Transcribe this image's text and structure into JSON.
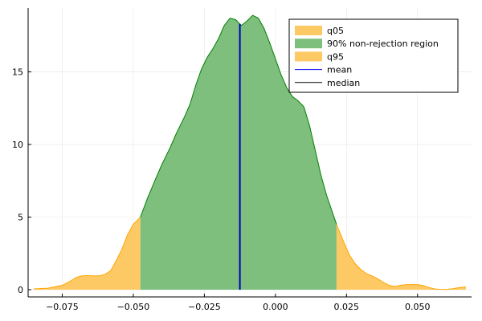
{
  "chart_data": {
    "type": "area",
    "title": "",
    "xlabel": "",
    "ylabel": "",
    "xlim": [
      -0.087,
      0.069
    ],
    "ylim": [
      -0.5,
      19.4
    ],
    "grid": true,
    "legend_position": "top-right",
    "x_ticks": [
      {
        "value": -0.075,
        "label": "−0.075"
      },
      {
        "value": -0.05,
        "label": "−0.050"
      },
      {
        "value": -0.025,
        "label": "−0.025"
      },
      {
        "value": 0.0,
        "label": "0.000"
      },
      {
        "value": 0.025,
        "label": "0.025"
      },
      {
        "value": 0.05,
        "label": "0.050"
      }
    ],
    "y_ticks": [
      {
        "value": 0,
        "label": "0"
      },
      {
        "value": 5,
        "label": "5"
      },
      {
        "value": 10,
        "label": "10"
      },
      {
        "value": 15,
        "label": "15"
      }
    ],
    "density": {
      "x": [
        -0.085,
        -0.08,
        -0.075,
        -0.072,
        -0.07,
        -0.068,
        -0.066,
        -0.064,
        -0.062,
        -0.06,
        -0.058,
        -0.056,
        -0.054,
        -0.052,
        -0.05,
        -0.0475,
        -0.045,
        -0.042,
        -0.04,
        -0.037,
        -0.035,
        -0.032,
        -0.03,
        -0.028,
        -0.026,
        -0.024,
        -0.022,
        -0.02,
        -0.018,
        -0.016,
        -0.014,
        -0.012,
        -0.01,
        -0.008,
        -0.006,
        -0.004,
        -0.002,
        0.0,
        0.002,
        0.004,
        0.006,
        0.008,
        0.01,
        0.012,
        0.014,
        0.016,
        0.018,
        0.0215,
        0.024,
        0.026,
        0.028,
        0.03,
        0.032,
        0.034,
        0.036,
        0.038,
        0.04,
        0.042,
        0.044,
        0.046,
        0.048,
        0.05,
        0.052,
        0.054,
        0.056,
        0.058,
        0.06,
        0.062,
        0.064,
        0.067
      ],
      "y": [
        0.05,
        0.1,
        0.3,
        0.6,
        0.85,
        0.95,
        0.97,
        0.95,
        0.95,
        1.05,
        1.3,
        2.0,
        2.8,
        3.8,
        4.5,
        5.0,
        6.3,
        7.7,
        8.6,
        9.8,
        10.7,
        11.9,
        12.8,
        14.1,
        15.2,
        16.0,
        16.6,
        17.3,
        18.2,
        18.7,
        18.6,
        18.2,
        18.5,
        18.9,
        18.7,
        18.0,
        17.0,
        15.9,
        14.8,
        13.9,
        13.3,
        13.0,
        12.6,
        11.3,
        9.6,
        7.9,
        6.5,
        4.5,
        3.3,
        2.4,
        1.8,
        1.4,
        1.1,
        0.95,
        0.75,
        0.5,
        0.3,
        0.22,
        0.3,
        0.35,
        0.35,
        0.35,
        0.28,
        0.15,
        0.05,
        0.02,
        0.02,
        0.05,
        0.12,
        0.2
      ]
    },
    "q05": -0.0475,
    "q95": 0.0215,
    "mean": -0.0125,
    "median": -0.0125,
    "series": [
      {
        "name": "q05",
        "color": "#fdc965",
        "kind": "area"
      },
      {
        "name": "90% non-rejection region",
        "color": "#7ebf7e",
        "edge_color": "#008000",
        "kind": "area"
      },
      {
        "name": "q95",
        "color": "#fdc965",
        "kind": "area"
      },
      {
        "name": "mean",
        "color": "#0000ff",
        "kind": "line"
      },
      {
        "name": "median",
        "color": "#000000",
        "kind": "line"
      }
    ],
    "colors": {
      "tail_fill": "#fdc965",
      "tail_edge": "#ffa500",
      "region_fill": "#7ebf7e",
      "region_edge": "#008000"
    }
  }
}
